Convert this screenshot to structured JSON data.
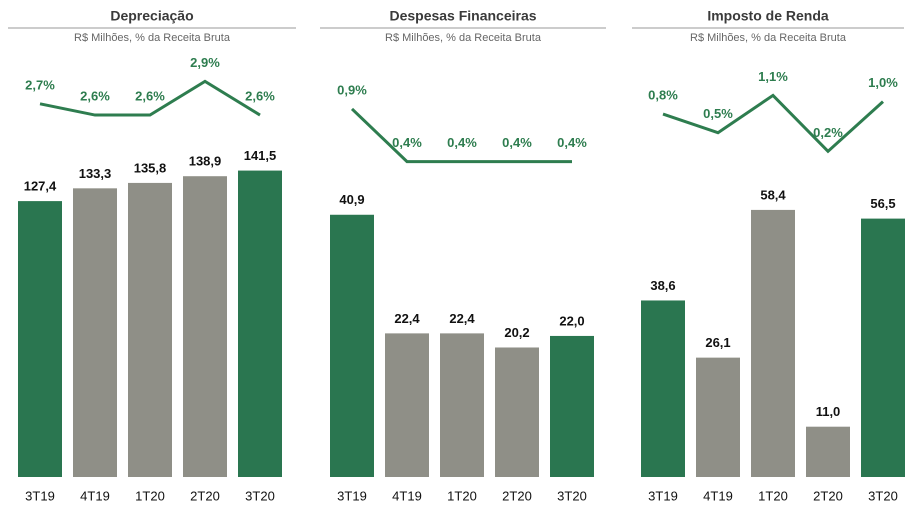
{
  "chart_data": [
    {
      "type": "bar",
      "title": "Depreciação",
      "subtitle": "R$ Milhões, % da Receita Bruta",
      "categories": [
        "3T19",
        "4T19",
        "1T20",
        "2T20",
        "3T20"
      ],
      "values": [
        127.4,
        133.3,
        135.8,
        138.9,
        141.5
      ],
      "value_labels": [
        "127,4",
        "133,3",
        "135,8",
        "138,9",
        "141,5"
      ],
      "colors": [
        "#2a7650",
        "#8f8f87",
        "#8f8f87",
        "#8f8f87",
        "#2a7650"
      ],
      "ylim": [
        0,
        151
      ],
      "line": {
        "values": [
          2.7,
          2.6,
          2.6,
          2.9,
          2.6
        ],
        "value_labels": [
          "2,7%",
          "2,6%",
          "2,6%",
          "2,9%",
          "2,6%"
        ],
        "color": "#2e7d4f",
        "axis": "y2"
      },
      "y2lim": [
        2.11,
        3.18
      ]
    },
    {
      "type": "bar",
      "title": "Despesas Financeiras",
      "subtitle": "R$ Milhões, % da Receita Bruta",
      "categories": [
        "3T19",
        "4T19",
        "1T20",
        "2T20",
        "3T20"
      ],
      "values": [
        40.9,
        22.4,
        22.4,
        20.2,
        22.0
      ],
      "value_labels": [
        "40,9",
        "22,4",
        "22,4",
        "20,2",
        "22,0"
      ],
      "colors": [
        "#2a7650",
        "#8f8f87",
        "#8f8f87",
        "#8f8f87",
        "#2a7650"
      ],
      "ylim": [
        0,
        51
      ],
      "line": {
        "values": [
          0.9,
          0.4,
          0.4,
          0.4,
          0.4
        ],
        "value_labels": [
          "0,9%",
          "0,4%",
          "0,4%",
          "0,4%",
          "0,4%"
        ],
        "color": "#2e7d4f",
        "axis": "y2"
      },
      "y2lim": [
        0.32,
        1.46
      ]
    },
    {
      "type": "bar",
      "title": "Imposto de Renda",
      "subtitle": "R$ Milhões, % da Receita Bruta",
      "categories": [
        "3T19",
        "4T19",
        "1T20",
        "2T20",
        "3T20"
      ],
      "values": [
        38.6,
        26.1,
        58.4,
        11.0,
        56.5
      ],
      "value_labels": [
        "38,6",
        "26,1",
        "58,4",
        "11,0",
        "56,5"
      ],
      "colors": [
        "#2a7650",
        "#8f8f87",
        "#8f8f87",
        "#8f8f87",
        "#2a7650"
      ],
      "ylim": [
        0,
        71.5
      ],
      "line": {
        "values": [
          0.8,
          0.5,
          1.1,
          0.2,
          1.0
        ],
        "value_labels": [
          "0,8%",
          "0,5%",
          "1,1%",
          "0,2%",
          "1,0%"
        ],
        "color": "#2e7d4f",
        "axis": "y2"
      },
      "y2lim": [
        -0.1,
        1.83
      ]
    }
  ]
}
